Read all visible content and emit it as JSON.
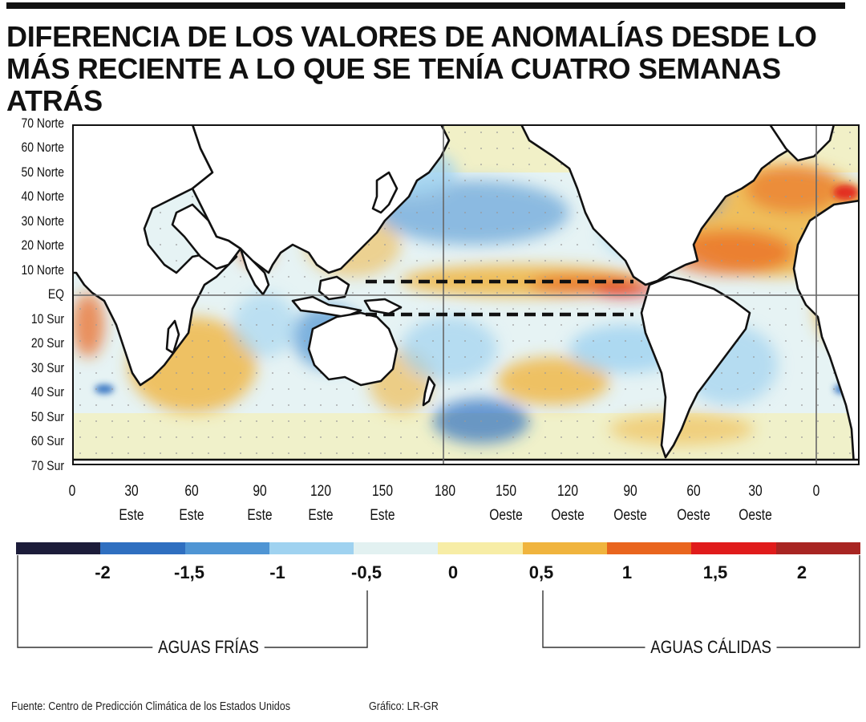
{
  "title": "DIFERENCIA DE LOS VALORES DE ANOMALÍAS DESDE LO MÁS RECIENTE A LO QUE SE TENÍA CUATRO SEMANAS ATRÁS",
  "map": {
    "latitude_labels": [
      "70 Norte",
      "60 Norte",
      "50 Norte",
      "40 Norte",
      "30 Norte",
      "20 Norte",
      "10 Norte",
      "EQ",
      "10 Sur",
      "20 Sur",
      "30 Sur",
      "40 Sur",
      "50 Sur",
      "60 Sur",
      "70 Sur"
    ],
    "longitude_labels": [
      {
        "value": "0",
        "dir": ""
      },
      {
        "value": "30",
        "dir": "Este"
      },
      {
        "value": "60",
        "dir": "Este"
      },
      {
        "value": "90",
        "dir": "Este"
      },
      {
        "value": "120",
        "dir": "Este"
      },
      {
        "value": "150",
        "dir": "Este"
      },
      {
        "value": "180",
        "dir": ""
      },
      {
        "value": "150",
        "dir": "Oeste"
      },
      {
        "value": "120",
        "dir": "Oeste"
      },
      {
        "value": "90",
        "dir": "Oeste"
      },
      {
        "value": "60",
        "dir": "Oeste"
      },
      {
        "value": "30",
        "dir": "Oeste"
      },
      {
        "value": "0",
        "dir": ""
      }
    ],
    "colors": {
      "land": "#ffffff",
      "coast": "#111111",
      "ocean_neutral": "#e6f3f4",
      "ocean_pale_warm": "#f8eea8",
      "grid": "#777777"
    }
  },
  "legend": {
    "colors": [
      "#1c1c3a",
      "#2f6fc0",
      "#4f95d4",
      "#9fd2f0",
      "#e2f1f1",
      "#f7eda6",
      "#f0b43e",
      "#e9651e",
      "#e01b1b",
      "#a82522"
    ],
    "tick_labels": [
      "-2",
      "-1,5",
      "-1",
      "-0,5",
      "0",
      "0,5",
      "1",
      "1,5",
      "2"
    ],
    "cold_label": "AGUAS FRÍAS",
    "warm_label": "AGUAS CÁLIDAS"
  },
  "footer": {
    "source": "Fuente: Centro de Predicción Climática de los Estados Unidos",
    "credit": "Gráfico: LR-GR"
  }
}
